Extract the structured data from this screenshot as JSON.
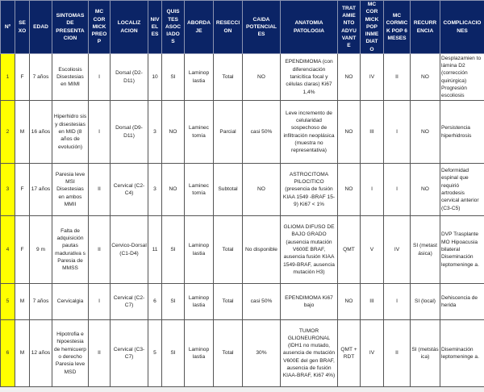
{
  "headers": [
    "Nº",
    "SE\nXO",
    "EDAD",
    "SINTOMAS\nDE\nPRESENTA\nCION",
    "MC\nCOR\nMICK\nPREO\nP",
    "LOCALIZ\nACION",
    "NIVEL\nES",
    "QUIS\nTES\nASOC\nIADO\nS",
    "ABORDA\nJE",
    "RESECCI\nON",
    "CAIDA\nPOTENCIAL\nES",
    "ANATOMIA\nPATOLOGIA",
    "TRAT\nAMIE\nNTO\nADYU\nVANT\nE",
    "MC\nCOR\nMICK\nPOP\nINME\nDIAT\nO",
    "MC\nCORMIC\nK  POP 6\nMESES",
    "RECURR\nENCIA",
    "COMPLICACIO\nNES"
  ],
  "colors": {
    "header_bg": "#0b2466",
    "number_bg": "#ffff00"
  },
  "rows": [
    [
      "1",
      "F",
      "7 años",
      "Escoliosis Disestesias en MIMI",
      "I",
      "Dorsal (D2-D11)",
      "10",
      "SI",
      "Laminop lastia",
      "Total",
      "NO",
      "EPENDIMOMA (con diferenciación tanicítica focal y células claras) Ki67 1,4%",
      "NO",
      "IV",
      "II",
      "NO",
      "Desplazamien to lámina D2 (corrección quirúrgica) Progresión escoliosis"
    ],
    [
      "2",
      "M",
      "16 años",
      "Hiperhidro sis y disestesias en MID (8 años de evolución)",
      "I",
      "Dorsal (D9-D11)",
      "3",
      "NO",
      "Laminec tomía",
      "Parcial",
      "casi 50%",
      "Leve incremento de celularidad sospechoso de infiltración neoplásica (muestra no representativa)",
      "NO",
      "III",
      "I",
      "NO",
      "Persistencia hiperhidrosis"
    ],
    [
      "3",
      "F",
      "17 años",
      "Paresia leve MSI Disestesias en ambos MMII",
      "II",
      "Cervical (C2-C4)",
      "3",
      "NO",
      "Laminec tomía",
      "Subtotal",
      "NO",
      "ASTROCITOMA PILOCITICO (presencia de fusión KIAA 1549 -BRAF 15-9) Ki67 < 1%",
      "NO",
      "I",
      "I",
      "NO",
      "Deformidad espinal que requirió artrodesis cervical anterior (C3-C5)"
    ],
    [
      "4",
      "F",
      "9 m",
      "Falta de adquisición pautas madurativa s  Paresia de MMSS",
      "II",
      "Cervico-Dorsal (C1-D4)",
      "11",
      "SI",
      "Laminop lastia",
      "Total",
      "No disponible",
      "GLIOMA DIFUSO DE BAJO GRADO (ausencia mutación V600E BRAF, ausencia fusión KIAA 1549-BRAF, ausencia mutación H3)",
      "QMT",
      "V",
      "IV",
      "SI (metast ásica)",
      "DVP Trasplante MO Hipoacusia bilateral Diseminación leptomeninge a."
    ],
    [
      "5",
      "M",
      "7 años",
      "Cervicalgia",
      "I",
      "Cervical (C2-C7)",
      "6",
      "SI",
      "Laminop lastia",
      "Total",
      "casi 50%",
      "EPENDIMOMA Ki67 bajo",
      "NO",
      "III",
      "I",
      "SI (local)",
      "Dehiscencia de herida"
    ],
    [
      "6",
      "M",
      "12 años",
      "Hipotrofia e hipoestesia de hemicuerp o derecho Paresia leve MSD",
      "II",
      "Cervical (C3-C7)",
      "5",
      "SI",
      "Laminop lastia",
      "Total",
      "30%",
      "TUMOR GLIONEURONAL (IDH1 no mutado, ausencia de mutación V600E del gen BRAF, ausencia de fusión  KIAA-BRAF, Ki67 4%)",
      "QMT + RDT",
      "IV",
      "II",
      "SI (metstás ica)",
      "Diseminación leptomeninge a."
    ]
  ]
}
